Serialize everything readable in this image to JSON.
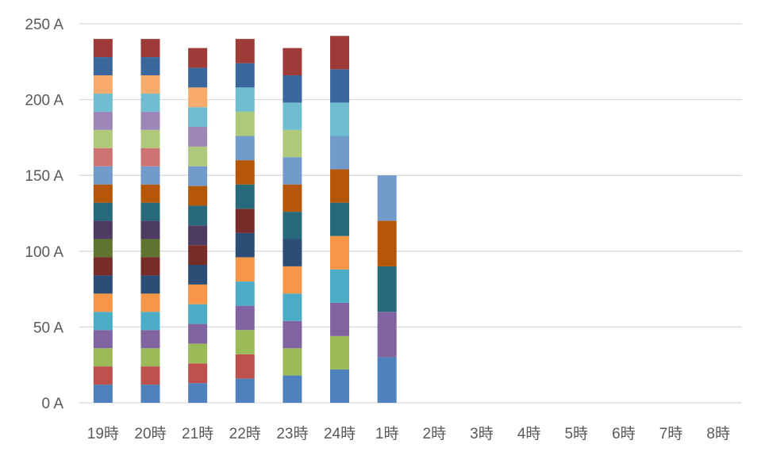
{
  "chart_data": {
    "type": "bar",
    "stacked": true,
    "title": "",
    "xlabel": "",
    "ylabel": "",
    "ylim": [
      0,
      250
    ],
    "yticks": [
      0,
      50,
      100,
      150,
      200,
      250
    ],
    "ytick_labels": [
      "0 A",
      "50 A",
      "100 A",
      "150 A",
      "200 A",
      "250 A"
    ],
    "grid": true,
    "legend": "none",
    "categories": [
      "19時",
      "20時",
      "21時",
      "22時",
      "23時",
      "24時",
      "1時",
      "2時",
      "3時",
      "4時",
      "5時",
      "6時",
      "7時",
      "8時"
    ],
    "series": [
      {
        "color": "#4F81BD",
        "values": [
          12,
          12,
          13,
          16,
          18,
          22,
          30,
          0,
          0,
          0,
          0,
          0,
          0,
          0
        ]
      },
      {
        "color": "#C0504D",
        "values": [
          12,
          12,
          13,
          16,
          0,
          0,
          0,
          0,
          0,
          0,
          0,
          0,
          0,
          0
        ]
      },
      {
        "color": "#9BBB59",
        "values": [
          12,
          12,
          13,
          16,
          18,
          22,
          0,
          0,
          0,
          0,
          0,
          0,
          0,
          0
        ]
      },
      {
        "color": "#8064A2",
        "values": [
          12,
          12,
          13,
          16,
          18,
          22,
          30,
          0,
          0,
          0,
          0,
          0,
          0,
          0
        ]
      },
      {
        "color": "#4BACC6",
        "values": [
          12,
          12,
          13,
          16,
          18,
          22,
          0,
          0,
          0,
          0,
          0,
          0,
          0,
          0
        ]
      },
      {
        "color": "#F79646",
        "values": [
          12,
          12,
          13,
          16,
          18,
          22,
          0,
          0,
          0,
          0,
          0,
          0,
          0,
          0
        ]
      },
      {
        "color": "#2C4D75",
        "values": [
          12,
          12,
          13,
          16,
          18,
          0,
          0,
          0,
          0,
          0,
          0,
          0,
          0,
          0
        ]
      },
      {
        "color": "#772C2A",
        "values": [
          12,
          12,
          13,
          16,
          0,
          0,
          0,
          0,
          0,
          0,
          0,
          0,
          0,
          0
        ]
      },
      {
        "color": "#5F7530",
        "values": [
          12,
          12,
          0,
          0,
          0,
          0,
          0,
          0,
          0,
          0,
          0,
          0,
          0,
          0
        ]
      },
      {
        "color": "#4D3B62",
        "values": [
          12,
          12,
          13,
          0,
          0,
          0,
          0,
          0,
          0,
          0,
          0,
          0,
          0,
          0
        ]
      },
      {
        "color": "#276A7C",
        "values": [
          12,
          12,
          13,
          16,
          18,
          22,
          30,
          0,
          0,
          0,
          0,
          0,
          0,
          0
        ]
      },
      {
        "color": "#B65708",
        "values": [
          12,
          12,
          13,
          16,
          18,
          22,
          30,
          0,
          0,
          0,
          0,
          0,
          0,
          0
        ]
      },
      {
        "color": "#729ACA",
        "values": [
          12,
          12,
          13,
          16,
          18,
          22,
          30,
          0,
          0,
          0,
          0,
          0,
          0,
          0
        ]
      },
      {
        "color": "#CD7371",
        "values": [
          12,
          12,
          0,
          0,
          0,
          0,
          0,
          0,
          0,
          0,
          0,
          0,
          0,
          0
        ]
      },
      {
        "color": "#AFC97A",
        "values": [
          12,
          12,
          13,
          16,
          18,
          0,
          0,
          0,
          0,
          0,
          0,
          0,
          0,
          0
        ]
      },
      {
        "color": "#9D87B8",
        "values": [
          12,
          12,
          13,
          0,
          0,
          0,
          0,
          0,
          0,
          0,
          0,
          0,
          0,
          0
        ]
      },
      {
        "color": "#6FBDD1",
        "values": [
          12,
          12,
          13,
          16,
          18,
          22,
          0,
          0,
          0,
          0,
          0,
          0,
          0,
          0
        ]
      },
      {
        "color": "#F9AB6B",
        "values": [
          12,
          12,
          13,
          0,
          0,
          0,
          0,
          0,
          0,
          0,
          0,
          0,
          0,
          0
        ]
      },
      {
        "color": "#3A679C",
        "values": [
          12,
          12,
          13,
          16,
          18,
          22,
          0,
          0,
          0,
          0,
          0,
          0,
          0,
          0
        ]
      },
      {
        "color": "#9E3A38",
        "values": [
          12,
          12,
          13,
          16,
          18,
          22,
          0,
          0,
          0,
          0,
          0,
          0,
          0,
          0
        ]
      }
    ]
  }
}
